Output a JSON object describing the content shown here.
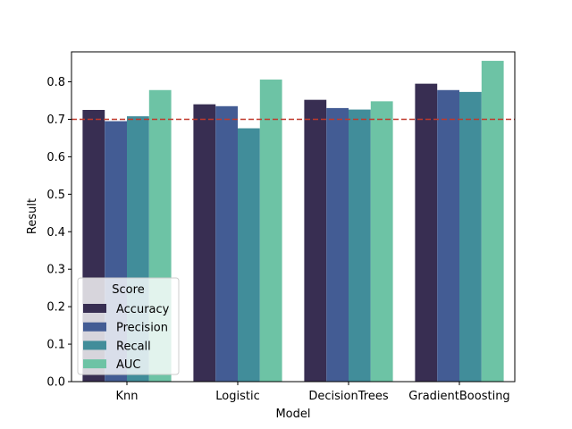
{
  "chart_data": {
    "type": "bar",
    "title": "",
    "xlabel": "Model",
    "ylabel": "Result",
    "categories": [
      "Knn",
      "Logistic",
      "DecisionTrees",
      "GradientBoosting"
    ],
    "series": [
      {
        "name": "Accuracy",
        "color": "#382e52",
        "values": [
          0.725,
          0.74,
          0.752,
          0.795
        ]
      },
      {
        "name": "Precision",
        "color": "#435c94",
        "values": [
          0.695,
          0.735,
          0.73,
          0.778
        ]
      },
      {
        "name": "Recall",
        "color": "#418d9a",
        "values": [
          0.708,
          0.676,
          0.726,
          0.773
        ]
      },
      {
        "name": "AUC",
        "color": "#6dc3a5",
        "values": [
          0.778,
          0.806,
          0.748,
          0.856
        ]
      }
    ],
    "ylim": [
      0,
      0.88
    ],
    "yticks": [
      "0.0",
      "0.1",
      "0.2",
      "0.3",
      "0.4",
      "0.5",
      "0.6",
      "0.7",
      "0.8"
    ],
    "reference_line": {
      "value": 0.7,
      "color": "#c0392b",
      "style": "dashed"
    },
    "legend": {
      "title": "Score",
      "placement": "lower-left"
    },
    "grid": false
  }
}
